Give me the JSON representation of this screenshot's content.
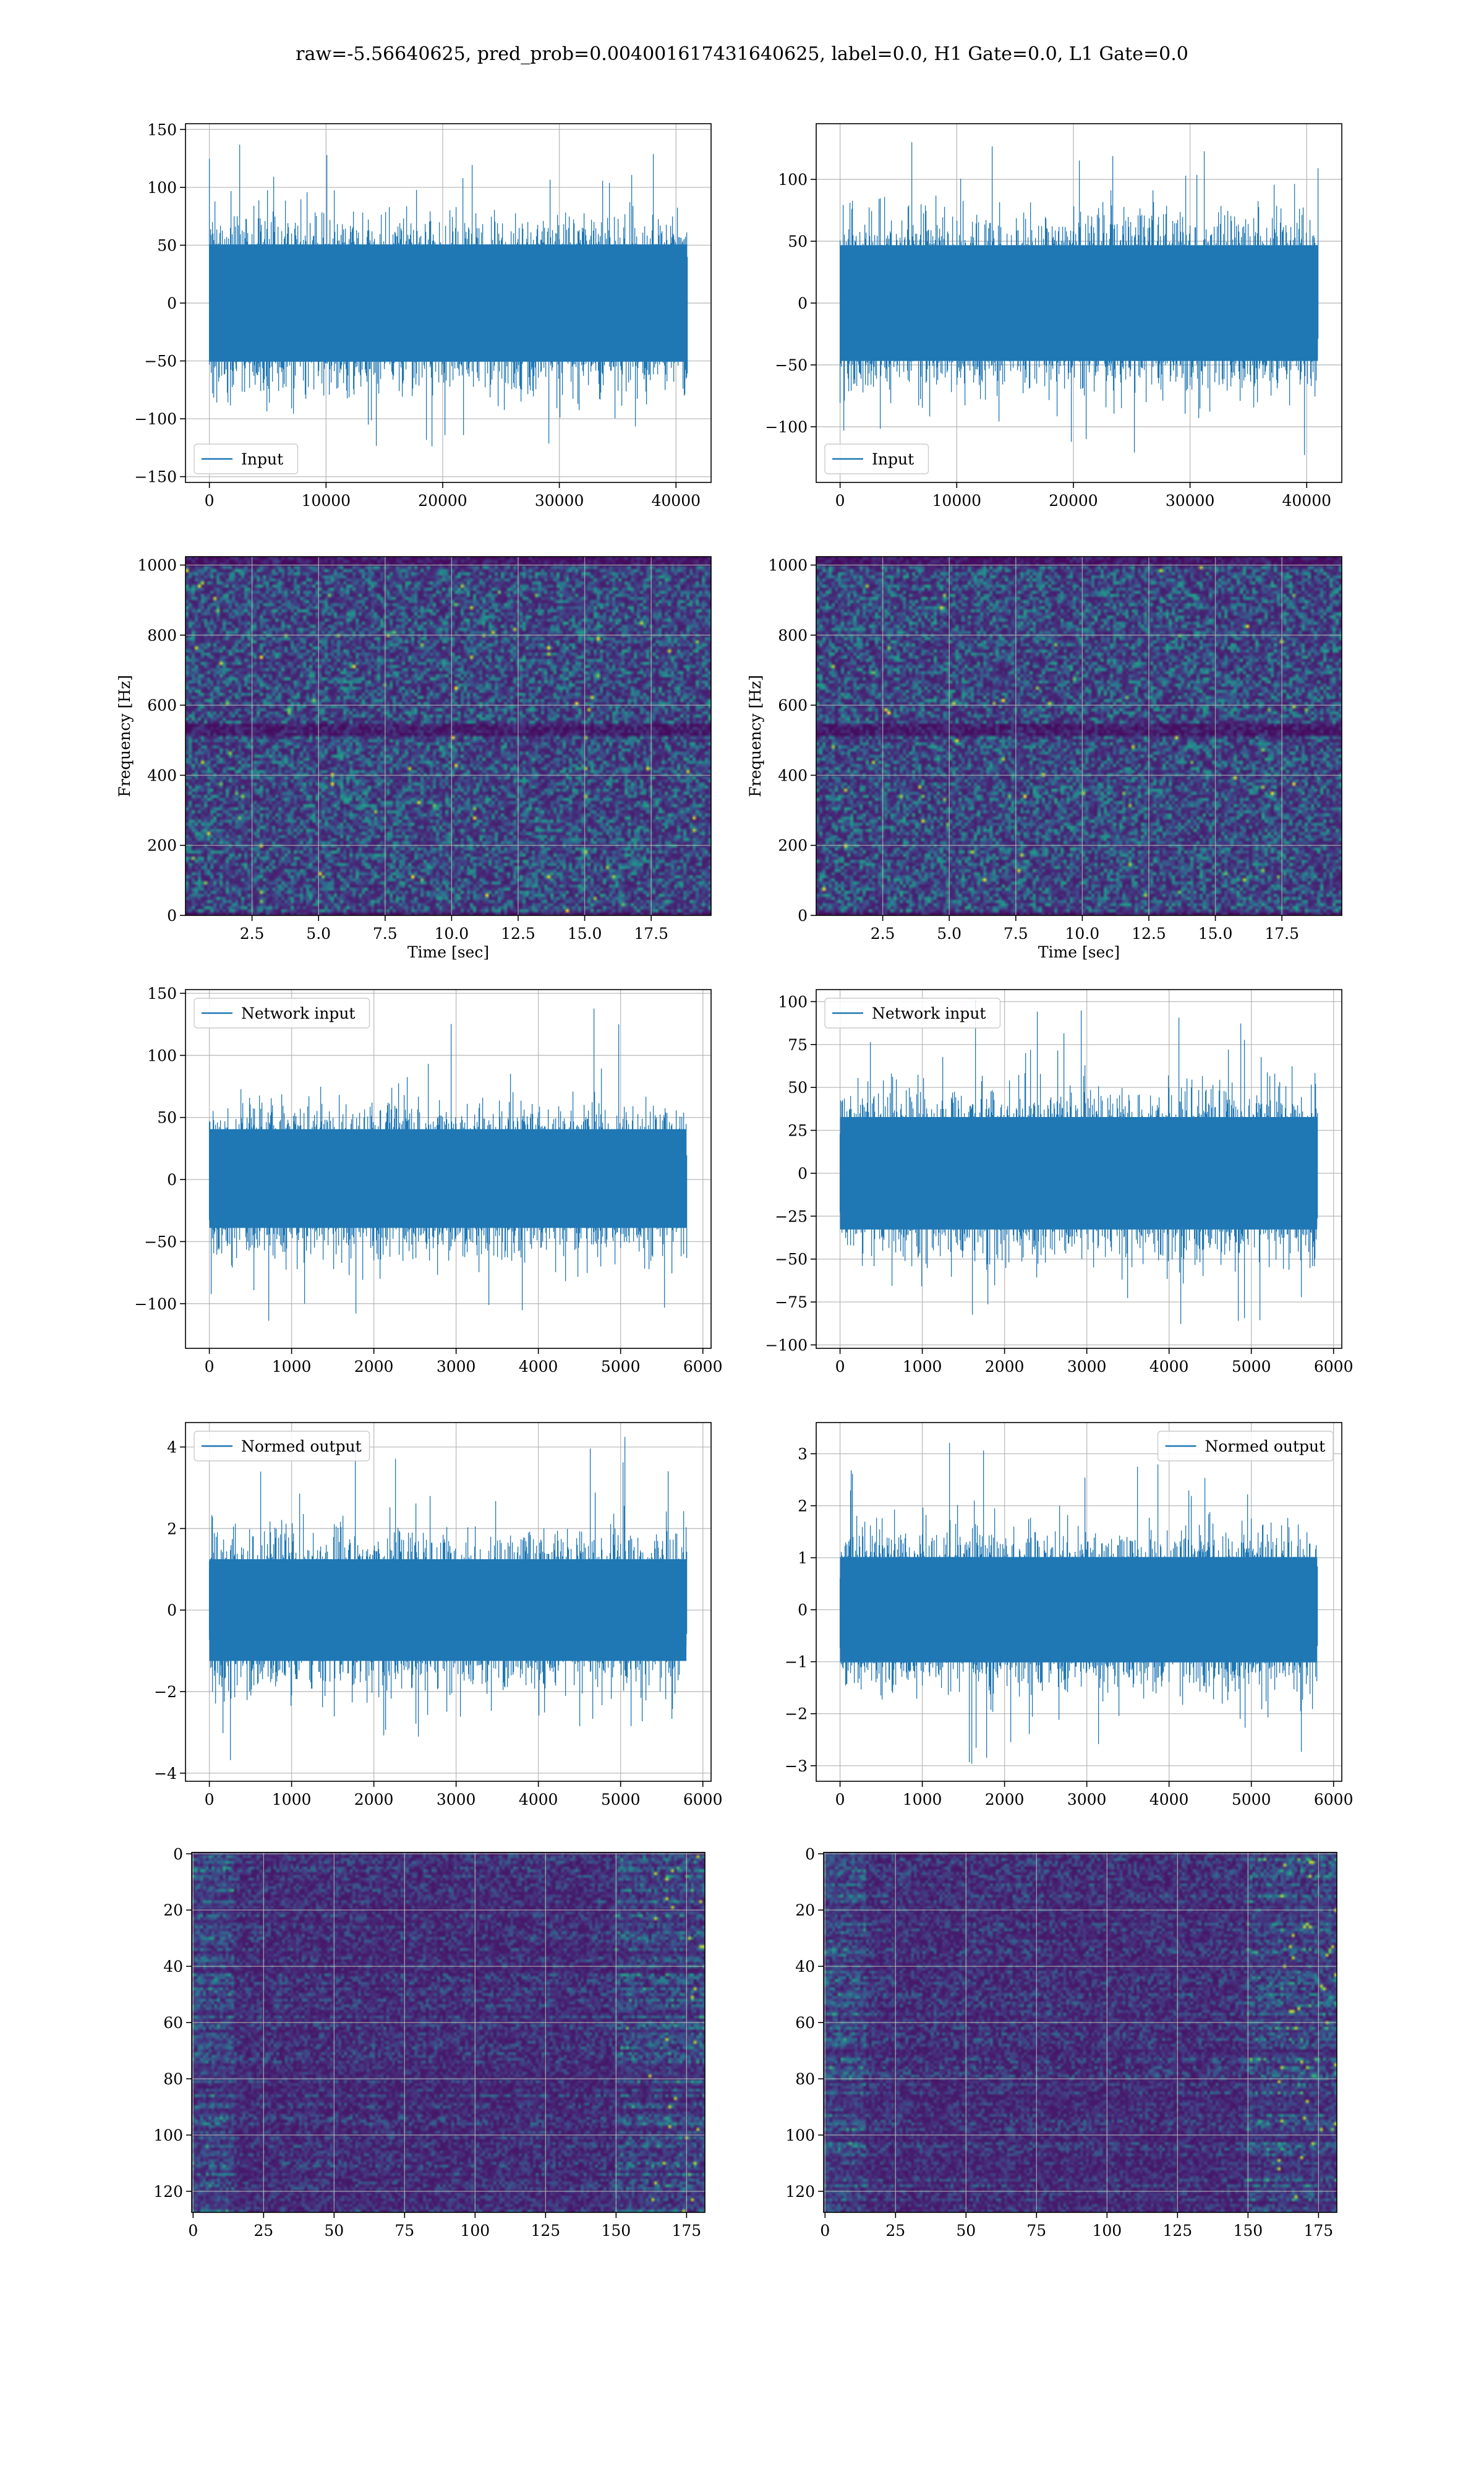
{
  "title": "raw=-5.56640625, pred_prob=0.004001617431640625, label=0.0, H1 Gate=0.0, L1 Gate=0.0",
  "colors": {
    "signal": "#1f77b4",
    "grid": "#b0b0b0",
    "viridis_dark": "#440154",
    "viridis_mid": "#21918c",
    "viridis_light": "#fde725"
  },
  "chart_data": [
    {
      "id": "h1-input",
      "type": "line",
      "legend": [
        "Input"
      ],
      "legend_loc": "lower-left",
      "xlim": [
        -2048,
        43008
      ],
      "ylim": [
        -155,
        155
      ],
      "xticks": [
        0,
        10000,
        20000,
        30000,
        40000
      ],
      "xtick_labels": [
        "0",
        "10000",
        "20000",
        "30000",
        "40000"
      ],
      "yticks": [
        -150,
        -100,
        -50,
        0,
        50,
        100,
        150
      ],
      "ytick_labels": [
        "−150",
        "−100",
        "−50",
        "0",
        "50",
        "100",
        "150"
      ],
      "n_samples": 40960,
      "x_range": [
        0,
        40960
      ],
      "band": [
        -65,
        65
      ],
      "peak": [
        -140,
        142
      ]
    },
    {
      "id": "l1-input",
      "type": "line",
      "legend": [
        "Input"
      ],
      "legend_loc": "lower-left",
      "xlim": [
        -2048,
        43008
      ],
      "ylim": [
        -145,
        145
      ],
      "xticks": [
        0,
        10000,
        20000,
        30000,
        40000
      ],
      "xtick_labels": [
        "0",
        "10000",
        "20000",
        "30000",
        "40000"
      ],
      "yticks": [
        -100,
        -50,
        0,
        50,
        100
      ],
      "ytick_labels": [
        "−100",
        "−50",
        "0",
        "50",
        "100"
      ],
      "n_samples": 40960,
      "x_range": [
        0,
        40960
      ],
      "band": [
        -60,
        60
      ],
      "peak": [
        -132,
        131
      ]
    },
    {
      "id": "h1-spectrogram",
      "type": "heatmap",
      "xlabel": "Time [sec]",
      "ylabel": "Frequency [Hz]",
      "xlim": [
        0,
        19.75
      ],
      "ylim": [
        0,
        1024
      ],
      "xticks": [
        2.5,
        5,
        7.5,
        10,
        12.5,
        15,
        17.5
      ],
      "xtick_labels": [
        "2.5",
        "5.0",
        "7.5",
        "10.0",
        "12.5",
        "15.0",
        "17.5"
      ],
      "yticks": [
        0,
        200,
        400,
        600,
        800,
        1000
      ],
      "ytick_labels": [
        "0",
        "200",
        "400",
        "600",
        "800",
        "1000"
      ],
      "colormap": "viridis"
    },
    {
      "id": "l1-spectrogram",
      "type": "heatmap",
      "xlabel": "Time [sec]",
      "ylabel": "Frequency [Hz]",
      "xlim": [
        0,
        19.75
      ],
      "ylim": [
        0,
        1024
      ],
      "xticks": [
        2.5,
        5,
        7.5,
        10,
        12.5,
        15,
        17.5
      ],
      "xtick_labels": [
        "2.5",
        "5.0",
        "7.5",
        "10.0",
        "12.5",
        "15.0",
        "17.5"
      ],
      "yticks": [
        0,
        200,
        400,
        600,
        800,
        1000
      ],
      "ytick_labels": [
        "0",
        "200",
        "400",
        "600",
        "800",
        "1000"
      ],
      "colormap": "viridis"
    },
    {
      "id": "h1-network-input",
      "type": "line",
      "legend": [
        "Network input"
      ],
      "legend_loc": "upper-left",
      "xlim": [
        -290,
        6100
      ],
      "ylim": [
        -136,
        153
      ],
      "xticks": [
        0,
        1000,
        2000,
        3000,
        4000,
        5000,
        6000
      ],
      "xtick_labels": [
        "0",
        "1000",
        "2000",
        "3000",
        "4000",
        "5000",
        "6000"
      ],
      "yticks": [
        -100,
        -50,
        0,
        50,
        100,
        150
      ],
      "ytick_labels": [
        "−100",
        "−50",
        "0",
        "50",
        "100",
        "150"
      ],
      "n_samples": 5800,
      "x_range": [
        0,
        5800
      ],
      "band": [
        -50,
        52
      ],
      "peak": [
        -123,
        139
      ]
    },
    {
      "id": "l1-network-input",
      "type": "line",
      "legend": [
        "Network input"
      ],
      "legend_loc": "upper-left",
      "xlim": [
        -290,
        6100
      ],
      "ylim": [
        -102,
        107
      ],
      "xticks": [
        0,
        1000,
        2000,
        3000,
        4000,
        5000,
        6000
      ],
      "xtick_labels": [
        "0",
        "1000",
        "2000",
        "3000",
        "4000",
        "5000",
        "6000"
      ],
      "yticks": [
        -100,
        -75,
        -50,
        -25,
        0,
        25,
        50,
        75,
        100
      ],
      "ytick_labels": [
        "−100",
        "−75",
        "−50",
        "−25",
        "0",
        "25",
        "50",
        "75",
        "100"
      ],
      "n_samples": 5800,
      "x_range": [
        0,
        5800
      ],
      "band": [
        -42,
        42
      ],
      "peak": [
        -95,
        103
      ]
    },
    {
      "id": "h1-normed-output",
      "type": "line",
      "legend": [
        "Normed output"
      ],
      "legend_loc": "upper-left",
      "xlim": [
        -290,
        6100
      ],
      "ylim": [
        -4.2,
        4.6
      ],
      "xticks": [
        0,
        1000,
        2000,
        3000,
        4000,
        5000,
        6000
      ],
      "xtick_labels": [
        "0",
        "1000",
        "2000",
        "3000",
        "4000",
        "5000",
        "6000"
      ],
      "yticks": [
        -4,
        -2,
        0,
        2,
        4
      ],
      "ytick_labels": [
        "−4",
        "−2",
        "0",
        "2",
        "4"
      ],
      "n_samples": 5800,
      "x_range": [
        0,
        5800
      ],
      "band": [
        -1.6,
        1.6
      ],
      "peak": [
        -3.7,
        4.4
      ]
    },
    {
      "id": "l1-normed-output",
      "type": "line",
      "legend": [
        "Normed output"
      ],
      "legend_loc": "upper-right",
      "xlim": [
        -290,
        6100
      ],
      "ylim": [
        -3.3,
        3.6
      ],
      "xticks": [
        0,
        1000,
        2000,
        3000,
        4000,
        5000,
        6000
      ],
      "xtick_labels": [
        "0",
        "1000",
        "2000",
        "3000",
        "4000",
        "5000",
        "6000"
      ],
      "yticks": [
        -3,
        -2,
        -1,
        0,
        1,
        2,
        3
      ],
      "ytick_labels": [
        "−3",
        "−2",
        "−1",
        "0",
        "1",
        "2",
        "3"
      ],
      "n_samples": 5800,
      "x_range": [
        0,
        5800
      ],
      "band": [
        -1.3,
        1.3
      ],
      "peak": [
        -3.0,
        3.4
      ]
    },
    {
      "id": "h1-feature-map",
      "type": "heatmap",
      "y_inverted": true,
      "xlim": [
        -0.5,
        181.5
      ],
      "ylim": [
        127.5,
        -0.5
      ],
      "xticks": [
        0,
        25,
        50,
        75,
        100,
        125,
        150,
        175
      ],
      "xtick_labels": [
        "0",
        "25",
        "50",
        "75",
        "100",
        "125",
        "150",
        "175"
      ],
      "yticks": [
        0,
        20,
        40,
        60,
        80,
        100,
        120
      ],
      "ytick_labels": [
        "0",
        "20",
        "40",
        "60",
        "80",
        "100",
        "120"
      ],
      "colormap": "viridis"
    },
    {
      "id": "l1-feature-map",
      "type": "heatmap",
      "y_inverted": true,
      "xlim": [
        -0.5,
        181.5
      ],
      "ylim": [
        127.5,
        -0.5
      ],
      "xticks": [
        0,
        25,
        50,
        75,
        100,
        125,
        150,
        175
      ],
      "xtick_labels": [
        "0",
        "25",
        "50",
        "75",
        "100",
        "125",
        "150",
        "175"
      ],
      "yticks": [
        0,
        20,
        40,
        60,
        80,
        100,
        120
      ],
      "ytick_labels": [
        "0",
        "20",
        "40",
        "60",
        "80",
        "100",
        "120"
      ],
      "colormap": "viridis"
    }
  ]
}
